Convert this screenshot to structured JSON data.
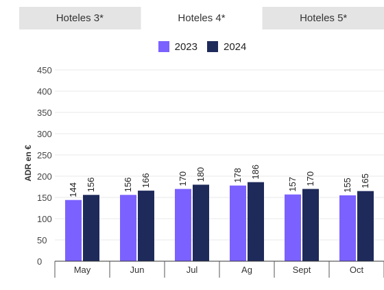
{
  "tabs": [
    {
      "label": "Hoteles 3*",
      "active": false
    },
    {
      "label": "Hoteles 4*",
      "active": true
    },
    {
      "label": "Hoteles 5*",
      "active": false
    }
  ],
  "colors": {
    "series_2023": "#7b61ff",
    "series_2024": "#1e2a5a",
    "grid": "#e8e8e8",
    "tab_bg": "#e4e4e4"
  },
  "chart_data": {
    "type": "bar",
    "title": "",
    "xlabel": "",
    "ylabel": "ADR en €",
    "ylim": [
      0,
      450
    ],
    "yticks": [
      "0",
      "50",
      "100",
      "150",
      "200",
      "250",
      "300",
      "350",
      "400",
      "450"
    ],
    "grid": true,
    "legend_position": "top-center",
    "categories": [
      "May",
      "Jun",
      "Jul",
      "Ag",
      "Sept",
      "Oct"
    ],
    "series": [
      {
        "name": "2023",
        "values": [
          144,
          156,
          170,
          178,
          157,
          155
        ]
      },
      {
        "name": "2024",
        "values": [
          156,
          166,
          180,
          186,
          170,
          165
        ]
      }
    ]
  }
}
